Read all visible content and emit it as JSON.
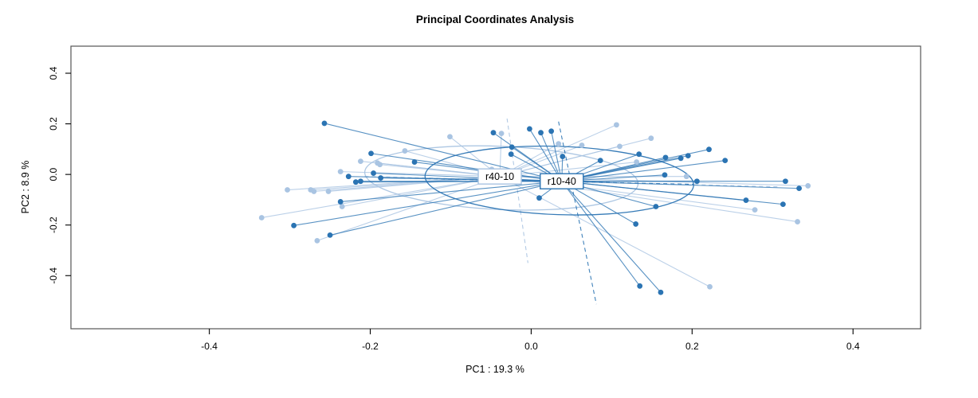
{
  "title": "Principal Coordinates Analysis",
  "axes": {
    "x": {
      "label": "PC1 :  19.3 %",
      "tick_labels": [
        "-0.4",
        "-0.2",
        "0.0",
        "0.2",
        "0.4"
      ]
    },
    "y": {
      "label": "PC2 :  8.9 %",
      "tick_labels": [
        "-0.4",
        "-0.2",
        "0.0",
        "0.2",
        "0.4"
      ]
    }
  },
  "colors": {
    "group_light": "#a9c4e2",
    "group_dark": "#2b74b3",
    "plot_border": "#555555",
    "tick_color": "#000000",
    "label_box_fill": "#ffffff"
  },
  "chart_data": {
    "type": "scatter",
    "subtype": "pcoa-ordination-spider",
    "title": "Principal Coordinates Analysis",
    "xlabel": "PC1 :  19.3 %",
    "ylabel": "PC2 :  8.9 %",
    "xlim": [
      -0.572,
      0.484
    ],
    "ylim": [
      -0.61,
      0.507
    ],
    "x_ticks": [
      -0.4,
      -0.2,
      0.0,
      0.2,
      0.4
    ],
    "y_ticks": [
      -0.4,
      -0.2,
      0.0,
      0.2,
      0.4
    ],
    "grid": false,
    "legend": "none",
    "groups": [
      {
        "name": "r40-10",
        "color": "#a9c4e2",
        "centroid": [
          -0.039,
          -0.008
        ],
        "ellipse": {
          "cx": -0.037,
          "cy": -0.014,
          "rx": 0.17,
          "ry": 0.125,
          "rotate_deg": 2.5
        },
        "dashed_axes": [
          [
            -0.207,
            -0.008,
            0.306,
            -0.049
          ],
          [
            -0.03,
            0.221,
            -0.004,
            -0.35
          ]
        ],
        "points": [
          [
            -0.335,
            -0.171
          ],
          [
            -0.303,
            -0.061
          ],
          [
            -0.274,
            -0.061
          ],
          [
            -0.27,
            -0.067
          ],
          [
            -0.252,
            -0.067
          ],
          [
            -0.237,
            0.011
          ],
          [
            -0.235,
            -0.127
          ],
          [
            -0.266,
            -0.262
          ],
          [
            -0.212,
            0.052
          ],
          [
            -0.191,
            0.045
          ],
          [
            -0.188,
            0.039
          ],
          [
            -0.157,
            0.093
          ],
          [
            -0.101,
            0.149
          ],
          [
            -0.049,
            0.02
          ],
          [
            -0.037,
            0.162
          ],
          [
            0.034,
            0.121
          ],
          [
            0.063,
            0.115
          ],
          [
            0.106,
            0.196
          ],
          [
            0.11,
            0.111
          ],
          [
            0.149,
            0.143
          ],
          [
            0.131,
            0.049
          ],
          [
            0.193,
            -0.008
          ],
          [
            0.222,
            -0.444
          ],
          [
            0.278,
            -0.14
          ],
          [
            0.331,
            -0.187
          ],
          [
            0.344,
            -0.045
          ]
        ]
      },
      {
        "name": "r10-40",
        "color": "#2b74b3",
        "centroid": [
          0.038,
          -0.027
        ],
        "ellipse": {
          "cx": 0.035,
          "cy": -0.024,
          "rx": 0.167,
          "ry": 0.135,
          "rotate_deg": 2.0
        },
        "dashed_axes": [
          [
            -0.13,
            -0.017,
            0.202,
            -0.039
          ],
          [
            0.034,
            0.209,
            0.081,
            -0.513
          ]
        ],
        "points": [
          [
            -0.257,
            0.202
          ],
          [
            -0.199,
            0.083
          ],
          [
            -0.145,
            0.049
          ],
          [
            -0.227,
            -0.008
          ],
          [
            -0.196,
            0.005
          ],
          [
            -0.187,
            -0.014
          ],
          [
            -0.218,
            -0.03
          ],
          [
            -0.212,
            -0.027
          ],
          [
            -0.237,
            -0.108
          ],
          [
            -0.295,
            -0.202
          ],
          [
            -0.25,
            -0.24
          ],
          [
            -0.047,
            0.165
          ],
          [
            -0.024,
            0.108
          ],
          [
            -0.025,
            0.08
          ],
          [
            -0.002,
            0.18
          ],
          [
            0.012,
            0.165
          ],
          [
            0.025,
            0.171
          ],
          [
            0.039,
            0.071
          ],
          [
            0.086,
            0.055
          ],
          [
            0.134,
            0.08
          ],
          [
            0.167,
            0.067
          ],
          [
            0.186,
            0.064
          ],
          [
            0.195,
            0.074
          ],
          [
            0.221,
            0.099
          ],
          [
            0.241,
            0.055
          ],
          [
            0.166,
            -0.002
          ],
          [
            0.206,
            -0.027
          ],
          [
            0.267,
            -0.102
          ],
          [
            0.313,
            -0.118
          ],
          [
            0.316,
            -0.027
          ],
          [
            0.333,
            -0.055
          ],
          [
            0.155,
            -0.127
          ],
          [
            0.13,
            -0.196
          ],
          [
            0.01,
            -0.093
          ],
          [
            0.135,
            -0.441
          ],
          [
            0.161,
            -0.466
          ]
        ]
      }
    ]
  }
}
